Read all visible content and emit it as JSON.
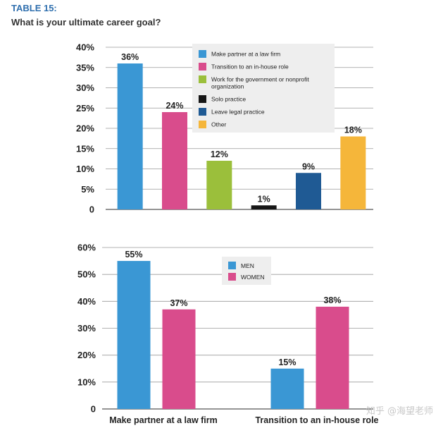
{
  "table_label": "TABLE 15:",
  "question": "What is your ultimate career goal?",
  "watermark": "知乎 @海望老师",
  "chart_data": [
    {
      "type": "bar",
      "title": "",
      "categories": [
        "Make partner at a law firm",
        "Transition to an in-house role",
        "Work for the government or nonprofit organization",
        "Solo practice",
        "Leave legal practice",
        "Other"
      ],
      "values": [
        36,
        24,
        12,
        1,
        9,
        18
      ],
      "value_labels": [
        "36%",
        "24%",
        "12%",
        "1%",
        "9%",
        "18%"
      ],
      "colors": [
        "#3a97d4",
        "#d94c8c",
        "#9bbf3b",
        "#161616",
        "#1f5a94",
        "#f5b63a"
      ],
      "ylim": [
        0,
        40
      ],
      "yticks": [
        0,
        5,
        10,
        15,
        20,
        25,
        30,
        35,
        40
      ],
      "ytick_labels": [
        "0",
        "5%",
        "10%",
        "15%",
        "20%",
        "25%",
        "30%",
        "35%",
        "40%"
      ],
      "legend": [
        "Make partner at a law firm",
        "Transition to an in-house role",
        "Work for the government or nonprofit organization",
        "Solo practice",
        "Leave legal practice",
        "Other"
      ],
      "legend_placement": "top-right",
      "grid": true
    },
    {
      "type": "bar",
      "title": "",
      "categories": [
        "Make partner at a law firm",
        "Transition to an in-house role"
      ],
      "series": [
        {
          "name": "MEN",
          "values": [
            55,
            15
          ],
          "labels": [
            "55%",
            "15%"
          ],
          "color": "#3a97d4"
        },
        {
          "name": "WOMEN",
          "values": [
            37,
            38
          ],
          "labels": [
            "37%",
            "38%"
          ],
          "color": "#d94c8c"
        }
      ],
      "ylim": [
        0,
        60
      ],
      "yticks": [
        0,
        10,
        20,
        30,
        40,
        50,
        60
      ],
      "ytick_labels": [
        "0",
        "10%",
        "20%",
        "30%",
        "40%",
        "50%",
        "60%"
      ],
      "legend_placement": "top-center",
      "grid": true
    }
  ]
}
